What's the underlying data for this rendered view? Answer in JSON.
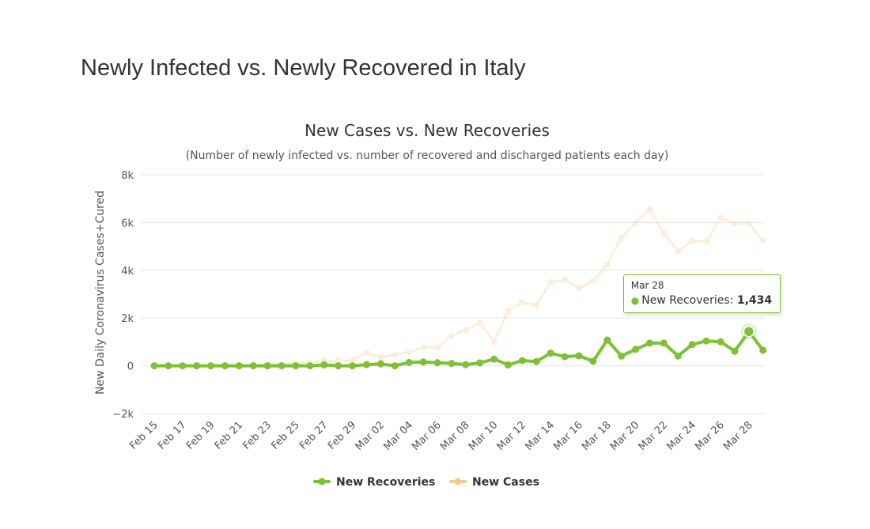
{
  "page": {
    "heading": "Newly Infected vs. Newly Recovered in Italy"
  },
  "chart_data": {
    "type": "line",
    "title": "New Cases vs. New Recoveries",
    "subtitle": "(Number of newly infected vs. number of recovered and discharged patients each day)",
    "xlabel": "",
    "ylabel": "New Daily Coronavirus Cases+Cured",
    "ylim": [
      -2000,
      8000
    ],
    "yticks": [
      -2000,
      0,
      2000,
      4000,
      6000,
      8000
    ],
    "ytick_labels": [
      "−2k",
      "0",
      "2k",
      "4k",
      "6k",
      "8k"
    ],
    "grid": true,
    "legend_position": "bottom-center",
    "x": [
      "Feb 15",
      "Feb 16",
      "Feb 17",
      "Feb 18",
      "Feb 19",
      "Feb 20",
      "Feb 21",
      "Feb 22",
      "Feb 23",
      "Feb 24",
      "Feb 25",
      "Feb 26",
      "Feb 27",
      "Feb 28",
      "Feb 29",
      "Mar 01",
      "Mar 02",
      "Mar 03",
      "Mar 04",
      "Mar 05",
      "Mar 06",
      "Mar 07",
      "Mar 08",
      "Mar 09",
      "Mar 10",
      "Mar 11",
      "Mar 12",
      "Mar 13",
      "Mar 14",
      "Mar 15",
      "Mar 16",
      "Mar 17",
      "Mar 18",
      "Mar 19",
      "Mar 20",
      "Mar 21",
      "Mar 22",
      "Mar 23",
      "Mar 24",
      "Mar 25",
      "Mar 26",
      "Mar 27",
      "Mar 28",
      "Mar 29"
    ],
    "x_tick_labels": [
      "Feb 15",
      "Feb 17",
      "Feb 19",
      "Feb 21",
      "Feb 23",
      "Feb 25",
      "Feb 27",
      "Feb 29",
      "Mar 02",
      "Mar 04",
      "Mar 06",
      "Mar 08",
      "Mar 10",
      "Mar 12",
      "Mar 14",
      "Mar 16",
      "Mar 18",
      "Mar 20",
      "Mar 22",
      "Mar 24",
      "Mar 26",
      "Mar 28"
    ],
    "series": [
      {
        "name": "New Cases",
        "color": "#fbc98b",
        "opacity": 0.3,
        "values": [
          0,
          0,
          0,
          0,
          0,
          0,
          0,
          0,
          60,
          80,
          100,
          150,
          200,
          200,
          230,
          560,
          350,
          470,
          580,
          770,
          770,
          1250,
          1500,
          1800,
          1000,
          2300,
          2650,
          2550,
          3500,
          3600,
          3250,
          3550,
          4250,
          5350,
          6000,
          6550,
          5550,
          4800,
          5250,
          5200,
          6200,
          5950,
          5950,
          5250
        ]
      },
      {
        "name": "New Recoveries",
        "color": "#7cc234",
        "opacity": 1,
        "values": [
          0,
          0,
          0,
          0,
          0,
          0,
          0,
          0,
          0,
          0,
          0,
          0,
          40,
          0,
          0,
          50,
          80,
          0,
          140,
          160,
          130,
          100,
          50,
          120,
          280,
          40,
          220,
          180,
          530,
          380,
          420,
          190,
          1080,
          410,
          690,
          950,
          950,
          410,
          890,
          1040,
          1010,
          610,
          1434,
          650
        ]
      }
    ],
    "tooltip": {
      "date": "Mar 28",
      "series": "New Recoveries",
      "value": "1,434",
      "index": 42
    }
  }
}
